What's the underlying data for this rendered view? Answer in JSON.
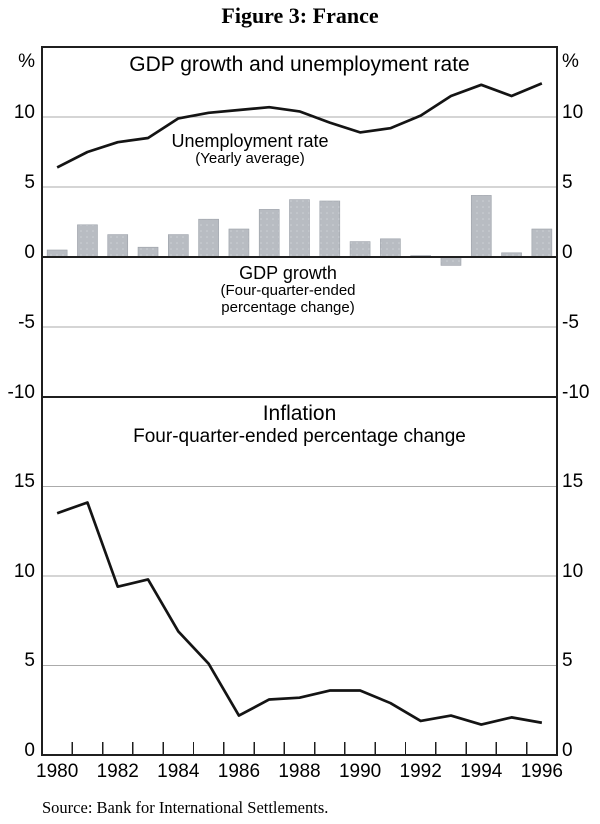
{
  "figure": {
    "title": "Figure 3: France"
  },
  "source": {
    "text": "Source: Bank for International Settlements."
  },
  "annotations": {
    "line_label": "Unemployment rate",
    "line_sublabel": "(Yearly average)",
    "bar_label": "GDP growth",
    "bar_sublabel1": "(Four-quarter-ended",
    "bar_sublabel2": "percentage change)"
  },
  "colors": {
    "background": "#ffffff",
    "bar_fill": "#b8bcc2",
    "bar_dot": "#cdd1d6",
    "bar_edge": "#9ba0a8",
    "line": "#141414",
    "grid": "#ababab",
    "axis": "#1f1f1f",
    "text": "#000000"
  },
  "chart_data": [
    {
      "type": "bar",
      "panel": "top",
      "title": "GDP growth and unemployment rate",
      "categories": [
        1980,
        1981,
        1982,
        1983,
        1984,
        1985,
        1986,
        1987,
        1988,
        1989,
        1990,
        1991,
        1992,
        1993,
        1994,
        1995,
        1996
      ],
      "xticks": [
        "1980",
        "1982",
        "1984",
        "1986",
        "1988",
        "1990",
        "1992",
        "1994",
        "1996"
      ],
      "series": [
        {
          "name": "Unemployment rate (Yearly average)",
          "type": "line",
          "values": [
            6.4,
            7.5,
            8.2,
            8.5,
            9.9,
            10.3,
            10.5,
            10.7,
            10.4,
            9.6,
            8.9,
            9.2,
            10.1,
            11.5,
            12.3,
            11.5,
            12.4
          ]
        },
        {
          "name": "GDP growth (Four-quarter-ended percentage change)",
          "type": "bar",
          "values": [
            0.5,
            2.3,
            1.6,
            0.7,
            1.6,
            2.7,
            2.0,
            3.4,
            4.1,
            4.0,
            1.1,
            1.3,
            0.1,
            -0.6,
            4.4,
            0.3,
            2.0
          ]
        }
      ],
      "ylabel": "%",
      "ylabel_right": "%",
      "ylim": [
        -10,
        15
      ],
      "yticks": [
        10,
        5,
        0,
        -5,
        -10
      ],
      "grid": "horizontal",
      "legend_position": "none"
    },
    {
      "type": "line",
      "panel": "bottom",
      "title": "Inflation",
      "subtitle": "Four-quarter-ended percentage change",
      "categories": [
        1980,
        1981,
        1982,
        1983,
        1984,
        1985,
        1986,
        1987,
        1988,
        1989,
        1990,
        1991,
        1992,
        1993,
        1994,
        1995,
        1996
      ],
      "xticks": [
        "1980",
        "1982",
        "1984",
        "1986",
        "1988",
        "1990",
        "1992",
        "1994",
        "1996"
      ],
      "values": [
        13.5,
        14.1,
        9.4,
        9.8,
        6.9,
        5.1,
        2.2,
        3.1,
        3.2,
        3.6,
        3.6,
        2.9,
        1.9,
        2.2,
        1.7,
        2.1,
        1.8
      ],
      "ylim": [
        0,
        20
      ],
      "yticks": [
        15,
        10,
        5,
        0
      ],
      "grid": "horizontal",
      "legend_position": "none"
    }
  ]
}
